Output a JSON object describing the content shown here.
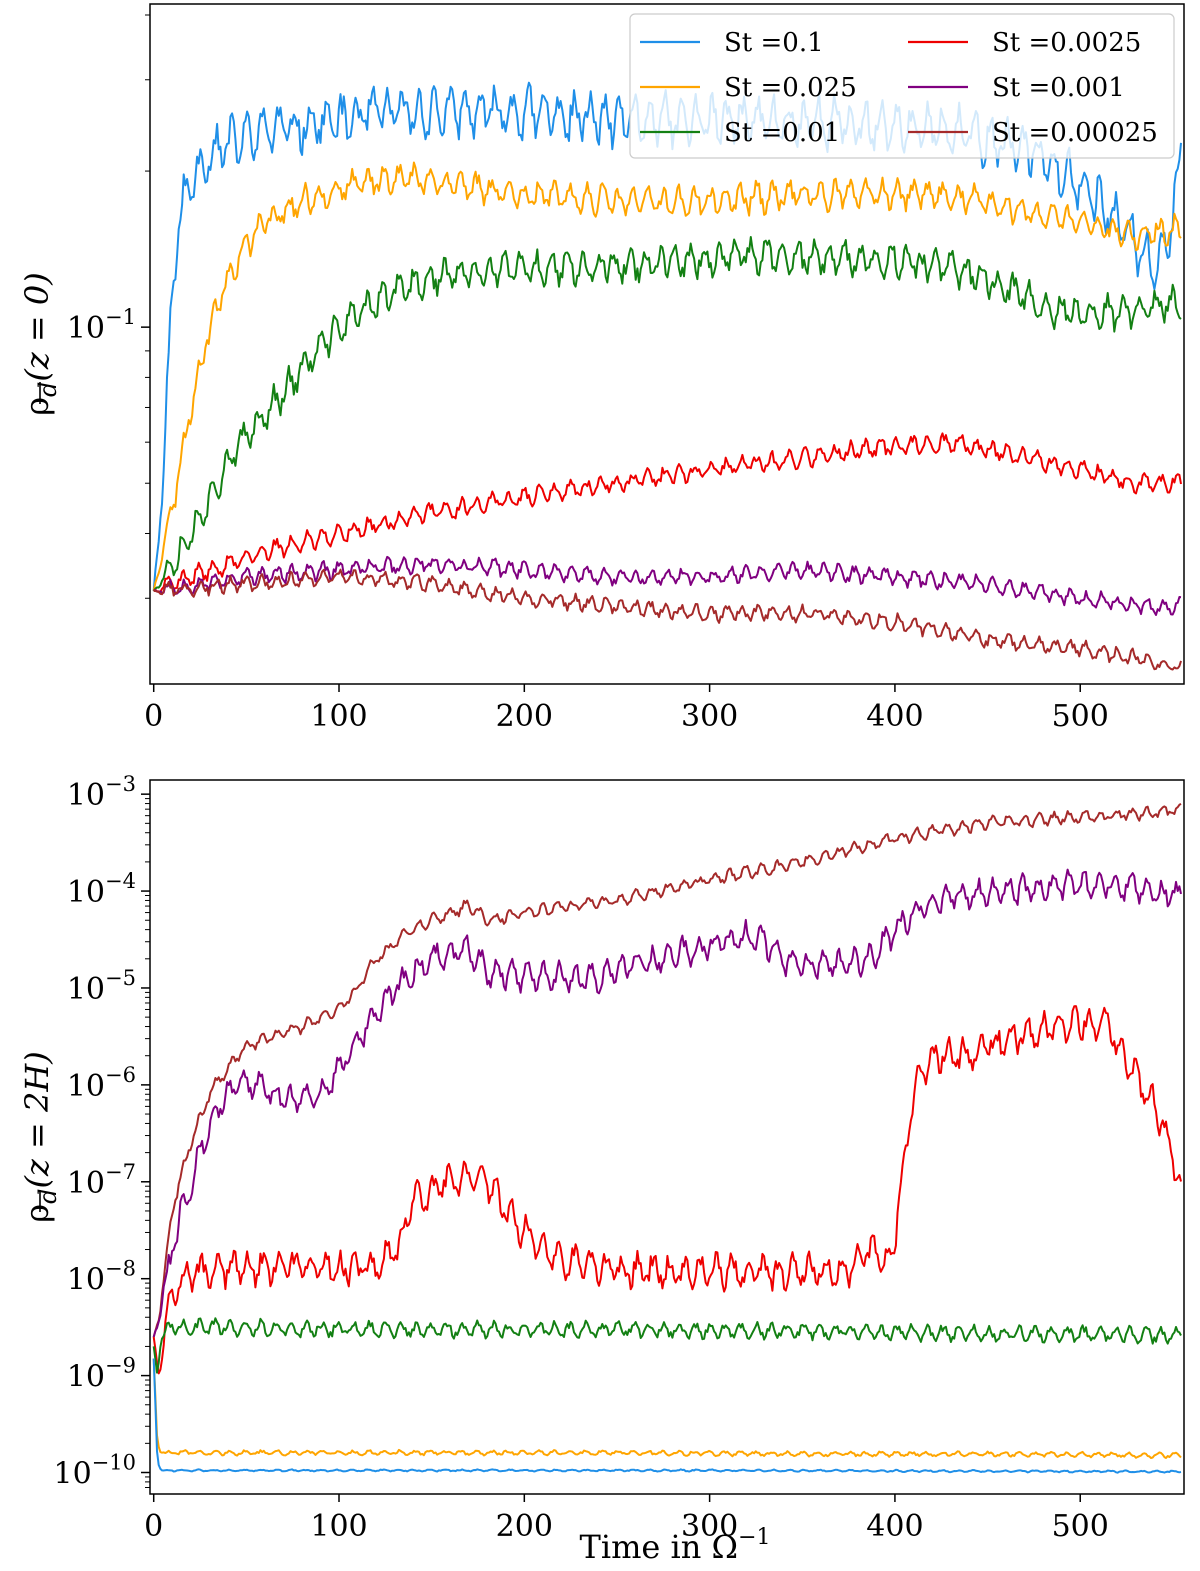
{
  "chart_data": [
    {
      "type": "line",
      "id": "top",
      "ylabel_main": "ρ",
      "ylabel_sub": "d",
      "ylabel_arg": "(z = 0)",
      "xlabel": "",
      "yscale": "log",
      "xlim": [
        -2,
        556
      ],
      "ylim": [
        0.0205,
        0.42
      ],
      "xticks": [
        0,
        100,
        200,
        300,
        400,
        500
      ],
      "xtick_labels": [
        "0",
        "100",
        "200",
        "300",
        "400",
        "500"
      ],
      "yticks": [
        0.1
      ],
      "ytick_labels": [
        {
          "base": "10",
          "exp": "−1"
        }
      ],
      "legend": {
        "position": "top-right",
        "columns": 2
      },
      "series": [
        {
          "name": "St =0.1",
          "color": "#1f8fe8",
          "anchors": [
            [
              0,
              0.031
            ],
            [
              5,
              0.05
            ],
            [
              10,
              0.12
            ],
            [
              15,
              0.17
            ],
            [
              20,
              0.19
            ],
            [
              25,
              0.205
            ],
            [
              30,
              0.215
            ],
            [
              40,
              0.225
            ],
            [
              60,
              0.24
            ],
            [
              80,
              0.245
            ],
            [
              100,
              0.25
            ],
            [
              120,
              0.26
            ],
            [
              150,
              0.26
            ],
            [
              200,
              0.26
            ],
            [
              250,
              0.25
            ],
            [
              300,
              0.25
            ],
            [
              350,
              0.25
            ],
            [
              400,
              0.245
            ],
            [
              440,
              0.235
            ],
            [
              480,
              0.215
            ],
            [
              500,
              0.19
            ],
            [
              520,
              0.16
            ],
            [
              540,
              0.13
            ],
            [
              548,
              0.15
            ],
            [
              555,
              0.225
            ]
          ],
          "amp": 0.06,
          "seed": 11
        },
        {
          "name": "St =0.025",
          "color": "#ffa500",
          "anchors": [
            [
              0,
              0.031
            ],
            [
              10,
              0.045
            ],
            [
              20,
              0.07
            ],
            [
              30,
              0.1
            ],
            [
              40,
              0.125
            ],
            [
              50,
              0.145
            ],
            [
              60,
              0.16
            ],
            [
              80,
              0.175
            ],
            [
              100,
              0.185
            ],
            [
              130,
              0.195
            ],
            [
              160,
              0.19
            ],
            [
              200,
              0.18
            ],
            [
              250,
              0.175
            ],
            [
              300,
              0.175
            ],
            [
              350,
              0.18
            ],
            [
              400,
              0.18
            ],
            [
              430,
              0.18
            ],
            [
              460,
              0.17
            ],
            [
              500,
              0.16
            ],
            [
              530,
              0.15
            ],
            [
              555,
              0.155
            ]
          ],
          "amp": 0.035,
          "seed": 23
        },
        {
          "name": "St =0.01",
          "color": "#138013",
          "anchors": [
            [
              0,
              0.031
            ],
            [
              20,
              0.04
            ],
            [
              40,
              0.055
            ],
            [
              60,
              0.068
            ],
            [
              80,
              0.083
            ],
            [
              100,
              0.1
            ],
            [
              120,
              0.112
            ],
            [
              150,
              0.125
            ],
            [
              200,
              0.13
            ],
            [
              250,
              0.132
            ],
            [
              300,
              0.135
            ],
            [
              330,
              0.138
            ],
            [
              360,
              0.135
            ],
            [
              400,
              0.135
            ],
            [
              430,
              0.13
            ],
            [
              460,
              0.12
            ],
            [
              480,
              0.11
            ],
            [
              500,
              0.105
            ],
            [
              530,
              0.108
            ],
            [
              555,
              0.112
            ]
          ],
          "amp": 0.04,
          "seed": 37
        },
        {
          "name": "St =0.0025",
          "color": "#ee0000",
          "anchors": [
            [
              0,
              0.031
            ],
            [
              30,
              0.034
            ],
            [
              60,
              0.037
            ],
            [
              100,
              0.04
            ],
            [
              150,
              0.044
            ],
            [
              200,
              0.047
            ],
            [
              250,
              0.05
            ],
            [
              300,
              0.053
            ],
            [
              350,
              0.056
            ],
            [
              400,
              0.059
            ],
            [
              430,
              0.06
            ],
            [
              460,
              0.057
            ],
            [
              500,
              0.053
            ],
            [
              530,
              0.05
            ],
            [
              555,
              0.05
            ]
          ],
          "amp": 0.022,
          "seed": 41
        },
        {
          "name": "St =0.001",
          "color": "#800080",
          "anchors": [
            [
              0,
              0.031
            ],
            [
              50,
              0.033
            ],
            [
              100,
              0.034
            ],
            [
              150,
              0.035
            ],
            [
              200,
              0.034
            ],
            [
              250,
              0.033
            ],
            [
              300,
              0.033
            ],
            [
              350,
              0.034
            ],
            [
              400,
              0.033
            ],
            [
              450,
              0.032
            ],
            [
              500,
              0.03
            ],
            [
              530,
              0.029
            ],
            [
              555,
              0.029
            ]
          ],
          "amp": 0.02,
          "seed": 53
        },
        {
          "name": "St =0.00025",
          "color": "#a52a2a",
          "anchors": [
            [
              0,
              0.031
            ],
            [
              50,
              0.032
            ],
            [
              100,
              0.033
            ],
            [
              150,
              0.032
            ],
            [
              200,
              0.03
            ],
            [
              250,
              0.029
            ],
            [
              300,
              0.028
            ],
            [
              350,
              0.028
            ],
            [
              400,
              0.027
            ],
            [
              450,
              0.025
            ],
            [
              500,
              0.024
            ],
            [
              530,
              0.023
            ],
            [
              555,
              0.022
            ]
          ],
          "amp": 0.018,
          "seed": 67
        }
      ]
    },
    {
      "type": "line",
      "id": "bottom",
      "ylabel_main": "ρ",
      "ylabel_sub": "d",
      "ylabel_arg": "(z = 2H)",
      "xlabel": "Time in Ω",
      "xlabel_sup": "−1",
      "yscale": "log",
      "xlim": [
        -2,
        556
      ],
      "ylim": [
        6e-11,
        0.0014
      ],
      "xticks": [
        0,
        100,
        200,
        300,
        400,
        500
      ],
      "xtick_labels": [
        "0",
        "100",
        "200",
        "300",
        "400",
        "500"
      ],
      "yticks": [
        1e-10,
        1e-09,
        1e-08,
        1e-07,
        1e-06,
        1e-05,
        0.0001,
        0.001
      ],
      "ytick_labels": [
        {
          "base": "10",
          "exp": "−10"
        },
        {
          "base": "10",
          "exp": "−9"
        },
        {
          "base": "10",
          "exp": "−8"
        },
        {
          "base": "10",
          "exp": "−7"
        },
        {
          "base": "10",
          "exp": "−6"
        },
        {
          "base": "10",
          "exp": "−5"
        },
        {
          "base": "10",
          "exp": "−4"
        },
        {
          "base": "10",
          "exp": "−3"
        }
      ],
      "series": [
        {
          "name": "St =0.00025",
          "color": "#a52a2a",
          "anchors": [
            [
              0,
              2.5e-09
            ],
            [
              3,
              4e-09
            ],
            [
              6,
              1.2e-08
            ],
            [
              10,
              5e-08
            ],
            [
              15,
              1.2e-07
            ],
            [
              20,
              2.5e-07
            ],
            [
              30,
              8e-07
            ],
            [
              40,
              1.5e-06
            ],
            [
              50,
              2.5e-06
            ],
            [
              60,
              3e-06
            ],
            [
              80,
              4e-06
            ],
            [
              100,
              6e-06
            ],
            [
              110,
              1e-05
            ],
            [
              120,
              2e-05
            ],
            [
              135,
              3.5e-05
            ],
            [
              150,
              5e-05
            ],
            [
              170,
              7e-05
            ],
            [
              180,
              5e-05
            ],
            [
              200,
              6e-05
            ],
            [
              250,
              8e-05
            ],
            [
              300,
              0.00013
            ],
            [
              350,
              0.0002
            ],
            [
              400,
              0.00035
            ],
            [
              450,
              0.0005
            ],
            [
              500,
              0.00058
            ],
            [
              555,
              0.00068
            ]
          ],
          "amp": 0.08,
          "seed": 71
        },
        {
          "name": "St =0.001",
          "color": "#800080",
          "anchors": [
            [
              0,
              2.5e-09
            ],
            [
              3,
              4e-09
            ],
            [
              6,
              8e-09
            ],
            [
              10,
              2e-08
            ],
            [
              15,
              5e-08
            ],
            [
              25,
              2e-07
            ],
            [
              35,
              6e-07
            ],
            [
              45,
              1e-06
            ],
            [
              55,
              1e-06
            ],
            [
              70,
              7e-07
            ],
            [
              90,
              8e-07
            ],
            [
              100,
              1.5e-06
            ],
            [
              115,
              4e-06
            ],
            [
              130,
              1e-05
            ],
            [
              150,
              2e-05
            ],
            [
              170,
              2.5e-05
            ],
            [
              180,
              1.5e-05
            ],
            [
              200,
              1.3e-05
            ],
            [
              240,
              1.3e-05
            ],
            [
              280,
              2.2e-05
            ],
            [
              320,
              3.5e-05
            ],
            [
              330,
              3e-05
            ],
            [
              340,
              1.8e-05
            ],
            [
              360,
              1.7e-05
            ],
            [
              385,
              1.9e-05
            ],
            [
              395,
              3e-05
            ],
            [
              410,
              6e-05
            ],
            [
              430,
              9e-05
            ],
            [
              470,
              0.000105
            ],
            [
              520,
              0.00012
            ],
            [
              555,
              9e-05
            ]
          ],
          "amp": 0.18,
          "seed": 83
        },
        {
          "name": "St =0.0025",
          "color": "#ee0000",
          "anchors": [
            [
              0,
              2.5e-09
            ],
            [
              3,
              1e-09
            ],
            [
              6,
              3e-09
            ],
            [
              10,
              8e-09
            ],
            [
              20,
              1.1e-08
            ],
            [
              40,
              1.3e-08
            ],
            [
              80,
              1.3e-08
            ],
            [
              120,
              1.3e-08
            ],
            [
              130,
              1.8e-08
            ],
            [
              140,
              6e-08
            ],
            [
              160,
              1e-07
            ],
            [
              180,
              1e-07
            ],
            [
              190,
              5e-08
            ],
            [
              200,
              3e-08
            ],
            [
              220,
              1.5e-08
            ],
            [
              260,
              1.2e-08
            ],
            [
              300,
              1.2e-08
            ],
            [
              340,
              1.15e-08
            ],
            [
              375,
              1.2e-08
            ],
            [
              385,
              2e-08
            ],
            [
              395,
              1.6e-08
            ],
            [
              398,
              1.6e-08
            ],
            [
              405,
              1.5e-07
            ],
            [
              410,
              8e-07
            ],
            [
              420,
              2e-06
            ],
            [
              440,
              2e-06
            ],
            [
              460,
              3e-06
            ],
            [
              500,
              4.5e-06
            ],
            [
              515,
              4e-06
            ],
            [
              530,
              1.2e-06
            ],
            [
              545,
              4e-07
            ],
            [
              555,
              8e-08
            ]
          ],
          "amp": 0.22,
          "seed": 97
        },
        {
          "name": "St =0.01",
          "color": "#138013",
          "anchors": [
            [
              0,
              2e-09
            ],
            [
              2,
              1e-09
            ],
            [
              4,
              2.5e-09
            ],
            [
              8,
              3.2e-09
            ],
            [
              50,
              3.1e-09
            ],
            [
              100,
              3e-09
            ],
            [
              150,
              3e-09
            ],
            [
              200,
              3e-09
            ],
            [
              250,
              3e-09
            ],
            [
              300,
              2.9e-09
            ],
            [
              350,
              2.9e-09
            ],
            [
              400,
              2.8e-09
            ],
            [
              450,
              2.7e-09
            ],
            [
              500,
              2.7e-09
            ],
            [
              555,
              2.6e-09
            ]
          ],
          "amp": 0.1,
          "seed": 101
        },
        {
          "name": "St =0.025",
          "color": "#ffa500",
          "anchors": [
            [
              0,
              1.5e-09
            ],
            [
              2,
              2e-10
            ],
            [
              4,
              1.6e-10
            ],
            [
              50,
              1.6e-10
            ],
            [
              150,
              1.6e-10
            ],
            [
              250,
              1.6e-10
            ],
            [
              350,
              1.55e-10
            ],
            [
              450,
              1.55e-10
            ],
            [
              555,
              1.5e-10
            ]
          ],
          "amp": 0.03,
          "seed": 113
        },
        {
          "name": "St =0.1",
          "color": "#1f8fe8",
          "anchors": [
            [
              0,
              1.5e-09
            ],
            [
              2,
              1.3e-10
            ],
            [
              4,
              1.05e-10
            ],
            [
              100,
              1.05e-10
            ],
            [
              300,
              1.05e-10
            ],
            [
              555,
              1.02e-10
            ]
          ],
          "amp": 0.012,
          "seed": 127
        }
      ]
    }
  ]
}
